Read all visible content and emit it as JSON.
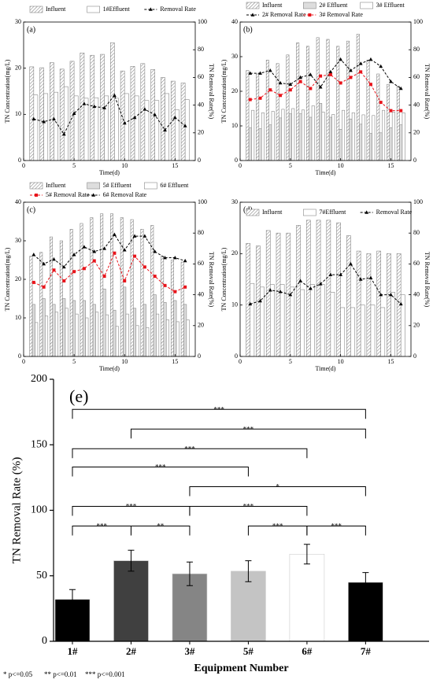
{
  "chart_data": [
    {
      "type": "bar_line",
      "panel_label": "(a)",
      "legend": "above",
      "xlabel": "Time(d)",
      "ylabel": "TN Concentration(mg/L)",
      "y2label": "TN Removal Rate(%)",
      "x": [
        1,
        2,
        3,
        4,
        5,
        6,
        7,
        8,
        9,
        10,
        11,
        12,
        13,
        14,
        15,
        16
      ],
      "xlim": [
        0,
        17
      ],
      "xticks": [
        0,
        5,
        10,
        15
      ],
      "ylim": [
        0,
        30
      ],
      "yticks": [
        0,
        10,
        20,
        30
      ],
      "y2lim": [
        0,
        100
      ],
      "y2ticks": [
        0,
        20,
        40,
        60,
        80,
        100
      ],
      "series": [
        {
          "name": "Influent",
          "kind": "bar",
          "pattern": "hatch",
          "color": "#ffffff",
          "values": [
            20.3,
            20.1,
            21.2,
            19.8,
            21.5,
            23.3,
            22.8,
            23.0,
            25.5,
            19.4,
            20.4,
            21.0,
            19.7,
            18.0,
            17.2,
            16.8
          ]
        },
        {
          "name": "1#Effluent",
          "kind": "bar",
          "color": "#ffffff",
          "values": [
            14.2,
            14.5,
            14.8,
            16.0,
            14.0,
            13.5,
            13.6,
            14.0,
            13.5,
            14.5,
            14.0,
            13.0,
            13.0,
            14.5,
            11.0,
            13.2
          ]
        },
        {
          "name": "Removal Rate",
          "kind": "line",
          "axis": "y2",
          "marker": "triangle",
          "color": "#000000",
          "values": [
            30,
            28,
            30,
            19,
            34,
            41,
            39,
            38,
            47,
            27,
            31,
            37,
            33,
            22,
            31,
            25
          ]
        }
      ]
    },
    {
      "type": "bar_line",
      "panel_label": "(b)",
      "legend": "above",
      "xlabel": "Time(d)",
      "ylabel": "TN Concentration(mg/L)",
      "y2label": "TN Removal Rate(%)",
      "x": [
        1,
        2,
        3,
        4,
        5,
        6,
        7,
        8,
        9,
        10,
        11,
        12,
        13,
        14,
        15,
        16
      ],
      "xlim": [
        0,
        17
      ],
      "xticks": [
        0,
        5,
        10,
        15
      ],
      "ylim": [
        0,
        40
      ],
      "yticks": [
        0,
        10,
        20,
        30,
        40
      ],
      "y2lim": [
        0,
        100
      ],
      "y2ticks": [
        0,
        20,
        40,
        60,
        80,
        100
      ],
      "series": [
        {
          "name": "Influent",
          "kind": "bar",
          "pattern": "hatch",
          "color": "#ffffff",
          "values": [
            26,
            25,
            29,
            28,
            30.5,
            34,
            33,
            35.5,
            35,
            33,
            34.5,
            36.5,
            29,
            25,
            22,
            21.5
          ]
        },
        {
          "name": "2# Effluent",
          "kind": "bar",
          "color": "#dddddd",
          "values": [
            9.5,
            9.2,
            10.3,
            12.3,
            13.5,
            13.5,
            12.5,
            16.5,
            12.5,
            9,
            12,
            10.5,
            7.8,
            8,
            9.5,
            10.3
          ]
        },
        {
          "name": "3# Effluent",
          "kind": "bar",
          "color": "#ffffff",
          "values": [
            14.5,
            13.8,
            14.2,
            14.8,
            15,
            14.6,
            15.8,
            14,
            13.3,
            14.5,
            13.8,
            13.2,
            13,
            14.5,
            14,
            13.8
          ]
        },
        {
          "name": "2# Removal Rate",
          "kind": "line",
          "axis": "y2",
          "marker": "triangle",
          "color": "#000000",
          "values": [
            63,
            63,
            65,
            56,
            55,
            60,
            62,
            53,
            64,
            73,
            65,
            70,
            73,
            68,
            57,
            52
          ]
        },
        {
          "name": "3# Removal Rate",
          "kind": "line",
          "axis": "y2",
          "marker": "square",
          "color": "#e8141b",
          "values": [
            44,
            45,
            51,
            47,
            51,
            57,
            52,
            61,
            62,
            56,
            60,
            64,
            55,
            42,
            36,
            36
          ]
        }
      ]
    },
    {
      "type": "bar_line",
      "panel_label": "(c)",
      "legend": "above",
      "xlabel": "Time(d)",
      "ylabel": "TN Concentration(mg/L)",
      "y2label": "TN Removal Rate(%)",
      "x": [
        1,
        2,
        3,
        4,
        5,
        6,
        7,
        8,
        9,
        10,
        11,
        12,
        13,
        14,
        15,
        16
      ],
      "xlim": [
        0,
        17
      ],
      "xticks": [
        0,
        5,
        10,
        15
      ],
      "ylim": [
        0,
        40
      ],
      "yticks": [
        0,
        10,
        20,
        30,
        40
      ],
      "y2lim": [
        0,
        100
      ],
      "y2ticks": [
        0,
        20,
        40,
        60,
        80,
        100
      ],
      "series": [
        {
          "name": "Influent",
          "kind": "bar",
          "pattern": "hatch",
          "color": "#ffffff",
          "values": [
            26,
            27,
            31,
            30,
            33,
            34.5,
            36,
            37,
            37,
            36,
            35.5,
            33,
            34,
            26,
            25,
            24.5
          ]
        },
        {
          "name": "5# Effluent",
          "kind": "bar",
          "color": "#dddddd",
          "values": [
            13.5,
            15,
            13.5,
            15,
            14.5,
            14.5,
            13.5,
            17.5,
            12,
            18,
            12.5,
            13.5,
            16,
            14,
            14.5,
            13.5
          ]
        },
        {
          "name": "6# Effluent",
          "kind": "bar",
          "color": "#ffffff",
          "values": [
            8.8,
            10.5,
            11.5,
            12.5,
            11,
            10,
            11.5,
            10.8,
            7.8,
            11,
            8,
            7.5,
            11,
            9.5,
            9,
            9.5
          ]
        },
        {
          "name": "5# Removal Rate",
          "kind": "line",
          "axis": "y2",
          "marker": "square",
          "color": "#e8141b",
          "values": [
            48,
            45,
            56,
            49,
            55,
            57,
            62,
            52,
            67,
            49,
            65,
            58,
            52,
            46,
            42,
            45
          ]
        },
        {
          "name": "6# Removal Rate",
          "kind": "line",
          "axis": "y2",
          "marker": "triangle",
          "color": "#000000",
          "values": [
            66,
            60,
            63,
            58,
            66,
            71,
            68,
            70,
            79,
            69,
            78,
            78,
            68,
            64,
            64,
            62
          ]
        }
      ]
    },
    {
      "type": "bar_line",
      "panel_label": "(d)",
      "legend": "inside",
      "xlabel": "Time(d)",
      "ylabel": "TN Concentration(mg/L)",
      "y2label": "TN Removal Rate(%)",
      "x": [
        1,
        2,
        3,
        4,
        5,
        6,
        7,
        8,
        9,
        10,
        11,
        12,
        13,
        14,
        15,
        16
      ],
      "xlim": [
        0,
        17
      ],
      "xticks": [
        0,
        5,
        10,
        15
      ],
      "ylim": [
        0,
        30
      ],
      "yticks": [
        0,
        10,
        20,
        30
      ],
      "y2lim": [
        0,
        100
      ],
      "y2ticks": [
        0,
        20,
        40,
        60,
        80,
        100
      ],
      "series": [
        {
          "name": "Influent",
          "kind": "bar",
          "pattern": "hatch",
          "color": "#ffffff",
          "values": [
            22,
            21.5,
            24.5,
            24,
            24,
            25.5,
            26.5,
            26.5,
            26.5,
            26,
            23.5,
            20.5,
            20,
            20.5,
            20,
            20
          ]
        },
        {
          "name": "7#Effluent",
          "kind": "bar",
          "color": "#ffffff",
          "values": [
            14.2,
            13.5,
            14,
            14,
            13.5,
            13,
            14,
            14,
            12.5,
            9.5,
            9.5,
            10,
            10,
            9.5,
            12.5,
            12
          ]
        },
        {
          "name": "Removal Rate",
          "kind": "line",
          "axis": "y2",
          "marker": "triangle",
          "color": "#000000",
          "values": [
            34,
            36,
            43,
            42,
            40,
            49,
            44,
            47,
            53,
            53,
            60,
            50,
            51,
            40,
            40,
            34
          ]
        }
      ]
    },
    {
      "type": "bar_sig",
      "panel_label": "(e)",
      "xlabel": "Equipment Number",
      "ylabel": "TN Removal Rate (%)",
      "categories": [
        "1#",
        "2#",
        "3#",
        "5#",
        "6#",
        "7#"
      ],
      "values": [
        32,
        61.5,
        51.5,
        53.5,
        66.5,
        45
      ],
      "errors": [
        7.5,
        8,
        9,
        8,
        7.5,
        7.5
      ],
      "colors": [
        "#000000",
        "#404040",
        "#858585",
        "#c4c4c4",
        "#ffffff",
        "#000000"
      ],
      "ylim": [
        0,
        200
      ],
      "yticks": [
        0,
        50,
        100,
        150,
        200
      ],
      "brackets": [
        {
          "from": 0,
          "to": 5,
          "label": "***",
          "level": 177
        },
        {
          "from": 1,
          "to": 5,
          "label": "***",
          "level": 162
        },
        {
          "from": 0,
          "to": 4,
          "label": "***",
          "level": 147
        },
        {
          "from": 0,
          "to": 3,
          "label": "***",
          "level": 133
        },
        {
          "from": 2,
          "to": 5,
          "label": "*",
          "level": 118
        },
        {
          "from": 0,
          "to": 2,
          "label": "***",
          "level": 103
        },
        {
          "from": 2,
          "to": 4,
          "label": "***",
          "level": 103
        },
        {
          "from": 0,
          "to": 1,
          "label": "***",
          "level": 88
        },
        {
          "from": 1,
          "to": 2,
          "label": "**",
          "level": 88
        },
        {
          "from": 3,
          "to": 4,
          "label": "***",
          "level": 88
        },
        {
          "from": 4,
          "to": 5,
          "label": "***",
          "level": 88
        }
      ],
      "footnotes": [
        "* p<=0.05",
        "** p<=0.01",
        "*** p<=0.001"
      ]
    }
  ]
}
